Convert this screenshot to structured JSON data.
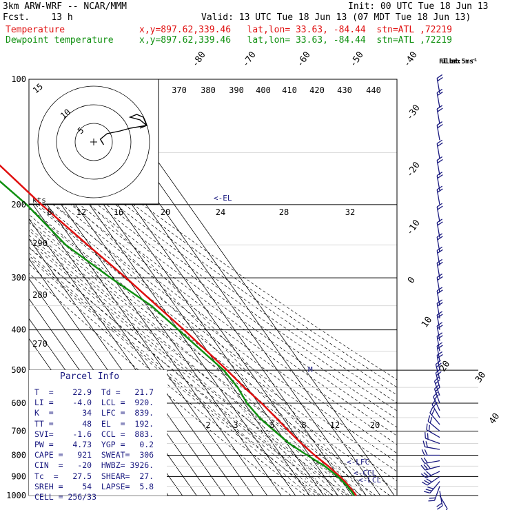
{
  "header": {
    "model": "3km ARW-WRF -- NCAR/MMM",
    "init": "Init: 00 UTC Tue 18 Jun 13",
    "fcst": "Fcst.    13 h",
    "valid": "Valid: 13 UTC Tue 18 Jun 13 (07 MDT Tue 18 Jun 13)",
    "temp_label": "Temperature",
    "dew_label": "Dewpoint temperature",
    "loc": "x,y=897.62,339.46   lat,lon= 33.63, -84.44  stn=ATL ,72219"
  },
  "colors": {
    "temperature": "#e01010",
    "dewpoint": "#109010",
    "info": "#1a1a80",
    "grid": "#000000"
  },
  "chart_data": {
    "type": "line",
    "subtype": "skew-T log-P sounding",
    "y_axis": "pressure (hPa, log scale)",
    "ylim": [
      1000,
      100
    ],
    "pressure_ticks": [
      100,
      200,
      300,
      400,
      500,
      600,
      700,
      800,
      900,
      1000
    ],
    "isotherm_labels": [
      "-80",
      "-70",
      "-60",
      "-50",
      "-40",
      "-30",
      "-20",
      "-10",
      "0",
      "10",
      "20",
      "30",
      "40"
    ],
    "theta_e_labels": [
      "370",
      "380",
      "390",
      "400",
      "410",
      "420",
      "430",
      "440"
    ],
    "theta_labels": [
      "290",
      "280",
      "270"
    ],
    "mixing_ratio_labels": [
      "2",
      "3",
      "5",
      "8",
      "12",
      "20"
    ],
    "series": [
      {
        "name": "Temperature",
        "color": "#e01010",
        "points": [
          [
            1000,
            23.0
          ],
          [
            980,
            22.9
          ],
          [
            950,
            22.5
          ],
          [
            925,
            22.0
          ],
          [
            900,
            21.0
          ],
          [
            875,
            19.5
          ],
          [
            850,
            18.0
          ],
          [
            800,
            13.8
          ],
          [
            750,
            10.3
          ],
          [
            700,
            7.6
          ],
          [
            650,
            5.2
          ],
          [
            600,
            2.3
          ],
          [
            550,
            -2.0
          ],
          [
            500,
            -5.6
          ],
          [
            450,
            -10.4
          ],
          [
            400,
            -15.9
          ],
          [
            350,
            -22.9
          ],
          [
            300,
            -30.8
          ],
          [
            250,
            -41.5
          ],
          [
            200,
            -54.0
          ],
          [
            175,
            -60.0
          ],
          [
            150,
            -67.0
          ],
          [
            130,
            -67.0
          ],
          [
            115,
            -64.5
          ],
          [
            100,
            -63.0
          ]
        ]
      },
      {
        "name": "Dewpoint temperature",
        "color": "#109010",
        "points": [
          [
            1000,
            21.5
          ],
          [
            980,
            21.7
          ],
          [
            950,
            21.3
          ],
          [
            925,
            20.5
          ],
          [
            900,
            19.5
          ],
          [
            875,
            17.5
          ],
          [
            850,
            15.5
          ],
          [
            800,
            8.5
          ],
          [
            750,
            1.6
          ],
          [
            700,
            -2.4
          ],
          [
            650,
            -6.5
          ],
          [
            600,
            -8.0
          ],
          [
            550,
            -6.7
          ],
          [
            500,
            -8.0
          ],
          [
            450,
            -13.6
          ],
          [
            400,
            -19.8
          ],
          [
            350,
            -26.9
          ],
          [
            300,
            -41.7
          ],
          [
            250,
            -57.0
          ],
          [
            200,
            -64.5
          ],
          [
            175,
            -72.0
          ],
          [
            150,
            -80.0
          ],
          [
            130,
            -78.0
          ],
          [
            115,
            -78.0
          ],
          [
            100,
            -81.0
          ]
        ]
      }
    ],
    "annotations": {
      "el": "<-EL",
      "lfc": "<-LFC",
      "lcl": "<-LCL",
      "ccl": "<-CCL",
      "m": "M"
    },
    "hodograph": {
      "units": "kts",
      "ring_labels": [
        "5",
        "10",
        "15"
      ],
      "speed_scale_labels": [
        "8",
        "12",
        "16",
        "20",
        "24",
        "28",
        "32"
      ],
      "points": [
        [
          3,
          -1
        ],
        [
          2,
          1
        ],
        [
          4,
          3
        ],
        [
          8,
          4
        ],
        [
          11,
          5
        ],
        [
          16,
          6
        ],
        [
          14,
          8
        ],
        [
          11,
          9
        ],
        [
          13,
          10
        ],
        [
          15,
          9
        ],
        [
          16,
          6
        ],
        [
          14,
          5
        ]
      ]
    },
    "wind_barbs": {
      "legend": "Full barb: 5 m s⁻¹",
      "levels": [
        {
          "p": 1000,
          "dir": 150,
          "spd": 1
        },
        {
          "p": 975,
          "dir": 170,
          "spd": 2
        },
        {
          "p": 950,
          "dir": 200,
          "spd": 2
        },
        {
          "p": 925,
          "dir": 220,
          "spd": 3
        },
        {
          "p": 900,
          "dir": 235,
          "spd": 3
        },
        {
          "p": 875,
          "dir": 245,
          "spd": 3
        },
        {
          "p": 850,
          "dir": 255,
          "spd": 3
        },
        {
          "p": 825,
          "dir": 260,
          "spd": 2
        },
        {
          "p": 800,
          "dir": 270,
          "spd": 2
        },
        {
          "p": 775,
          "dir": 280,
          "spd": 2
        },
        {
          "p": 750,
          "dir": 290,
          "spd": 2
        },
        {
          "p": 725,
          "dir": 300,
          "spd": 2
        },
        {
          "p": 700,
          "dir": 310,
          "spd": 2
        },
        {
          "p": 675,
          "dir": 320,
          "spd": 2
        },
        {
          "p": 650,
          "dir": 330,
          "spd": 2
        },
        {
          "p": 625,
          "dir": 335,
          "spd": 2
        },
        {
          "p": 600,
          "dir": 340,
          "spd": 2
        },
        {
          "p": 575,
          "dir": 340,
          "spd": 2
        },
        {
          "p": 550,
          "dir": 345,
          "spd": 2
        },
        {
          "p": 525,
          "dir": 345,
          "spd": 2
        },
        {
          "p": 500,
          "dir": 350,
          "spd": 2
        },
        {
          "p": 475,
          "dir": 350,
          "spd": 2
        },
        {
          "p": 450,
          "dir": 350,
          "spd": 2
        },
        {
          "p": 425,
          "dir": 350,
          "spd": 2
        },
        {
          "p": 400,
          "dir": 350,
          "spd": 2
        },
        {
          "p": 375,
          "dir": 350,
          "spd": 2
        },
        {
          "p": 350,
          "dir": 350,
          "spd": 2
        },
        {
          "p": 325,
          "dir": 350,
          "spd": 2
        },
        {
          "p": 300,
          "dir": 350,
          "spd": 2
        },
        {
          "p": 280,
          "dir": 350,
          "spd": 2
        },
        {
          "p": 260,
          "dir": 350,
          "spd": 2
        },
        {
          "p": 240,
          "dir": 350,
          "spd": 2
        },
        {
          "p": 220,
          "dir": 350,
          "spd": 2
        },
        {
          "p": 200,
          "dir": 350,
          "spd": 2
        },
        {
          "p": 185,
          "dir": 350,
          "spd": 2
        },
        {
          "p": 170,
          "dir": 350,
          "spd": 2
        },
        {
          "p": 155,
          "dir": 350,
          "spd": 2
        },
        {
          "p": 140,
          "dir": 350,
          "spd": 2
        },
        {
          "p": 128,
          "dir": 350,
          "spd": 2
        },
        {
          "p": 117,
          "dir": 350,
          "spd": 2
        },
        {
          "p": 108,
          "dir": 350,
          "spd": 2
        }
      ]
    }
  },
  "parcel_info": {
    "title": "Parcel Info",
    "rows": [
      "T  =    22.9  Td =   21.7",
      "LI =    -4.0  LCL =  920.",
      "K  =      34  LFC =  839.",
      "TT =      48  EL  =  192.",
      "SVI=    -1.6  CCL =  883.",
      "PW =    4.73  YGP =   0.2",
      "CAPE =   921  SWEAT=  306",
      "CIN  =   -20  HWBZ= 3926.",
      "Tc  =   27.5  SHEAR=  27.",
      "SREH =    54  LAPSE=  5.8",
      "CELL = 256/33"
    ]
  }
}
